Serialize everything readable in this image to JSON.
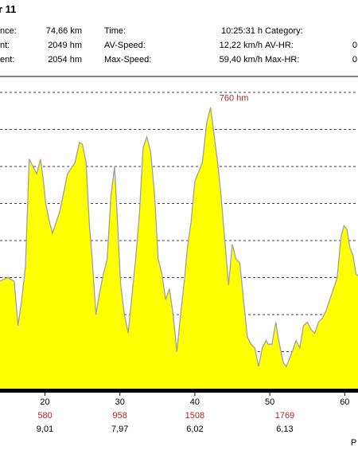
{
  "header": {
    "title": "r 11",
    "stats": [
      {
        "label": "nce:",
        "value": "74,66 km"
      },
      {
        "label": "nt:",
        "value": "2049 hm"
      },
      {
        "label": "ent:",
        "value": "2054 hm"
      },
      {
        "label": "Time:",
        "value": "10:25:31 h"
      },
      {
        "label": "AV-Speed:",
        "value": "12,22 km/h"
      },
      {
        "label": "Max-Speed:",
        "value": "59,40 km/h"
      },
      {
        "label": "Category:",
        "value": ""
      },
      {
        "label": "AV-HR:",
        "value": "0"
      },
      {
        "label": "Max-HR:",
        "value": "0"
      }
    ]
  },
  "footer": {
    "corner_text": "P"
  },
  "chart_data": {
    "type": "area",
    "fill_color": "#ffff00",
    "line_color": "#a0a0a0",
    "grid": "horizontal dashed",
    "xlim": [
      14,
      63
    ],
    "ylim": [
      0,
      900
    ],
    "x_ticks": [
      20,
      30,
      40,
      50,
      60
    ],
    "peak_annotation": {
      "x": 43.1,
      "y": 760,
      "label": "760 hm"
    },
    "secondary_rows": [
      {
        "name": "altitude",
        "x": [
          20,
          30,
          40,
          52,
          61
        ],
        "labels": [
          "580",
          "958",
          "1508",
          "1769",
          ""
        ]
      },
      {
        "name": "speed",
        "x": [
          20,
          30,
          40,
          52,
          61
        ],
        "labels": [
          "9,01",
          "7,97",
          "6,02",
          "6,13",
          ""
        ]
      }
    ],
    "x": [
      14,
      15,
      15.9,
      16.4,
      16.9,
      17.4,
      17.9,
      18.4,
      18.9,
      19.4,
      19.8,
      20.1,
      20.5,
      21,
      22,
      23,
      24,
      24.6,
      25,
      25.5,
      25.9,
      26.3,
      26.8,
      27.3,
      27.8,
      28.3,
      28.8,
      29.3,
      29.7,
      30.1,
      30.6,
      31.1,
      31.6,
      32.1,
      32.6,
      33.1,
      33.6,
      34.1,
      34.6,
      35.1,
      35.6,
      36.1,
      36.6,
      37.1,
      37.6,
      38.1,
      38.6,
      39,
      39.5,
      40,
      40.4,
      41,
      41.6,
      42.1,
      42.6,
      43.1,
      43.5,
      44,
      44.5,
      45,
      45.5,
      46,
      46.5,
      47,
      47.5,
      48,
      48.5,
      49,
      49.5,
      49.8,
      50.3,
      50.8,
      51.1,
      51.4,
      51.8,
      52.2,
      52.6,
      53,
      53.5,
      54,
      54.5,
      55,
      55.5,
      56,
      56.5,
      57,
      57.5,
      58,
      58.5,
      59,
      59.5,
      59.9,
      60.3,
      60.7,
      61.1,
      61.5,
      62,
      63
    ],
    "y": [
      290,
      300,
      290,
      170,
      240,
      330,
      620,
      600,
      580,
      620,
      560,
      500,
      460,
      420,
      480,
      580,
      610,
      665,
      660,
      610,
      450,
      350,
      200,
      260,
      310,
      350,
      520,
      600,
      440,
      280,
      200,
      150,
      250,
      350,
      470,
      650,
      680,
      640,
      530,
      350,
      310,
      240,
      270,
      200,
      100,
      200,
      290,
      380,
      450,
      560,
      580,
      610,
      720,
      760,
      680,
      600,
      520,
      400,
      280,
      390,
      350,
      340,
      240,
      140,
      120,
      110,
      60,
      110,
      130,
      120,
      120,
      180,
      140,
      110,
      70,
      60,
      80,
      100,
      130,
      110,
      170,
      180,
      160,
      150,
      180,
      190,
      210,
      240,
      270,
      300,
      410,
      440,
      430,
      380,
      360,
      310,
      300,
      300
    ]
  }
}
